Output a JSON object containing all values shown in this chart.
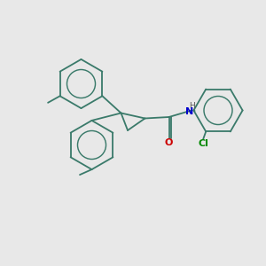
{
  "bg_color": "#e8e8e8",
  "bond_color": "#3a7a6a",
  "atom_colors": {
    "N": "#0000cc",
    "O": "#cc0000",
    "Cl": "#008800",
    "H": "#555555"
  },
  "bond_lw": 1.3,
  "figsize": [
    3.0,
    3.0
  ],
  "dpi": 100
}
